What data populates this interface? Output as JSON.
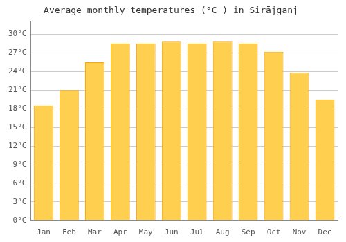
{
  "chart_data": {
    "type": "bar",
    "title": "Average monthly temperatures (°C ) in Sirājganj",
    "categories": [
      "Jan",
      "Feb",
      "Mar",
      "Apr",
      "May",
      "Jun",
      "Jul",
      "Aug",
      "Sep",
      "Oct",
      "Nov",
      "Dec"
    ],
    "values": [
      18.5,
      21.0,
      25.5,
      28.5,
      28.5,
      28.8,
      28.5,
      28.8,
      28.5,
      27.2,
      23.8,
      19.5
    ],
    "color": "#FFD050",
    "ylim": [
      0,
      32
    ],
    "yticks": [
      {
        "value": 0,
        "label": "0°C"
      },
      {
        "value": 3,
        "label": "3°C"
      },
      {
        "value": 6,
        "label": "6°C"
      },
      {
        "value": 9,
        "label": "9°C"
      },
      {
        "value": 12,
        "label": "12°C"
      },
      {
        "value": 15,
        "label": "15°C"
      },
      {
        "value": 18,
        "label": "18°C"
      },
      {
        "value": 21,
        "label": "21°C"
      },
      {
        "value": 24,
        "label": "24°C"
      },
      {
        "value": 27,
        "label": "27°C"
      },
      {
        "value": 30,
        "label": "30°C"
      }
    ],
    "grid": true
  }
}
